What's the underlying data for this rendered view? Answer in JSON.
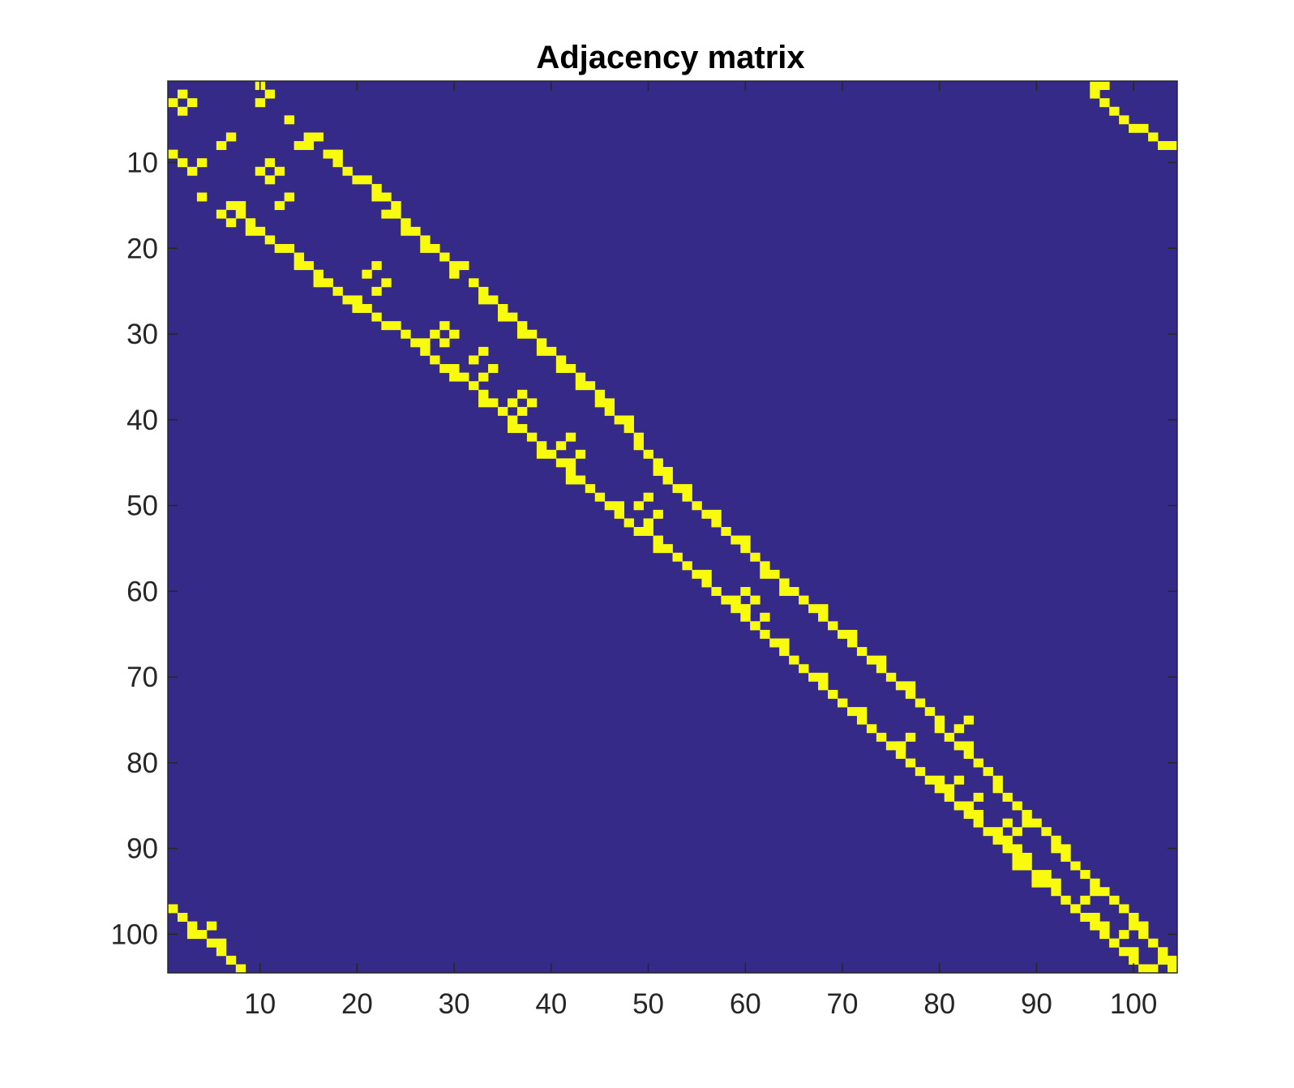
{
  "chart_data": {
    "type": "heatmap",
    "title": "Adjacency matrix",
    "xlabel": "",
    "ylabel": "",
    "n": 104,
    "xlim": [
      0.5,
      104.5
    ],
    "ylim": [
      0.5,
      104.5
    ],
    "y_direction": "reversed",
    "x_ticks": [
      10,
      20,
      30,
      40,
      50,
      60,
      70,
      80,
      90,
      100
    ],
    "y_ticks": [
      10,
      20,
      30,
      40,
      50,
      60,
      70,
      80,
      90,
      100
    ],
    "colors": {
      "zero": "#352A87",
      "one": "#F9FB0E",
      "axis": "#262626"
    },
    "nonzero_cells_approx": [
      [
        2,
        2
      ],
      [
        3,
        1
      ],
      [
        3,
        3
      ],
      [
        4,
        2
      ],
      [
        1,
        10
      ],
      [
        2,
        11
      ],
      [
        3,
        10
      ],
      [
        5,
        13
      ],
      [
        9,
        1
      ],
      [
        10,
        2
      ],
      [
        10,
        4
      ],
      [
        11,
        3
      ],
      [
        10,
        11
      ],
      [
        11,
        12
      ],
      [
        11,
        10
      ],
      [
        12,
        11
      ],
      [
        14,
        4
      ],
      [
        14,
        13
      ],
      [
        15,
        12
      ],
      [
        7,
        7
      ],
      [
        8,
        6
      ],
      [
        7,
        15
      ],
      [
        8,
        14
      ],
      [
        16,
        6
      ],
      [
        17,
        7
      ],
      [
        15,
        8
      ],
      [
        9,
        17
      ],
      [
        9,
        18
      ],
      [
        10,
        18
      ],
      [
        11,
        19
      ],
      [
        12,
        20
      ],
      [
        12,
        21
      ],
      [
        13,
        22
      ],
      [
        14,
        22
      ],
      [
        14,
        23
      ],
      [
        15,
        24
      ],
      [
        16,
        23
      ],
      [
        16,
        24
      ],
      [
        17,
        25
      ],
      [
        18,
        25
      ],
      [
        18,
        26
      ],
      [
        19,
        27
      ],
      [
        20,
        27
      ],
      [
        20,
        28
      ],
      [
        21,
        29
      ],
      [
        22,
        30
      ],
      [
        22,
        31
      ],
      [
        23,
        30
      ],
      [
        24,
        32
      ],
      [
        25,
        33
      ],
      [
        26,
        33
      ],
      [
        26,
        34
      ],
      [
        27,
        35
      ],
      [
        28,
        35
      ],
      [
        28,
        36
      ],
      [
        29,
        37
      ],
      [
        30,
        37
      ],
      [
        30,
        38
      ],
      [
        31,
        39
      ],
      [
        32,
        39
      ],
      [
        32,
        40
      ],
      [
        33,
        41
      ],
      [
        34,
        41
      ],
      [
        34,
        42
      ],
      [
        35,
        43
      ],
      [
        36,
        43
      ],
      [
        36,
        44
      ],
      [
        37,
        45
      ],
      [
        38,
        45
      ],
      [
        38,
        46
      ],
      [
        39,
        46
      ],
      [
        40,
        47
      ],
      [
        40,
        48
      ],
      [
        41,
        48
      ],
      [
        42,
        49
      ],
      [
        43,
        49
      ],
      [
        44,
        50
      ],
      [
        45,
        51
      ],
      [
        46,
        51
      ],
      [
        46,
        52
      ],
      [
        47,
        52
      ],
      [
        48,
        53
      ],
      [
        48,
        54
      ],
      [
        49,
        54
      ],
      [
        50,
        55
      ],
      [
        51,
        56
      ],
      [
        51,
        57
      ],
      [
        52,
        57
      ],
      [
        53,
        58
      ],
      [
        54,
        59
      ],
      [
        54,
        60
      ],
      [
        55,
        60
      ],
      [
        56,
        61
      ],
      [
        57,
        62
      ],
      [
        58,
        62
      ],
      [
        58,
        63
      ],
      [
        59,
        64
      ],
      [
        60,
        64
      ],
      [
        60,
        65
      ],
      [
        61,
        66
      ],
      [
        62,
        67
      ],
      [
        62,
        68
      ],
      [
        63,
        68
      ],
      [
        64,
        69
      ],
      [
        65,
        70
      ],
      [
        65,
        71
      ],
      [
        66,
        71
      ],
      [
        67,
        72
      ],
      [
        68,
        73
      ],
      [
        68,
        74
      ],
      [
        69,
        74
      ],
      [
        70,
        75
      ],
      [
        71,
        76
      ],
      [
        71,
        77
      ],
      [
        72,
        77
      ],
      [
        73,
        78
      ],
      [
        74,
        79
      ],
      [
        75,
        80
      ],
      [
        76,
        80
      ],
      [
        77,
        81
      ],
      [
        78,
        82
      ],
      [
        78,
        83
      ],
      [
        79,
        83
      ],
      [
        80,
        84
      ],
      [
        81,
        85
      ],
      [
        82,
        86
      ],
      [
        83,
        86
      ],
      [
        84,
        87
      ],
      [
        85,
        88
      ],
      [
        86,
        89
      ],
      [
        87,
        89
      ],
      [
        87,
        90
      ],
      [
        88,
        91
      ],
      [
        89,
        92
      ],
      [
        90,
        92
      ],
      [
        90,
        93
      ],
      [
        91,
        93
      ],
      [
        92,
        94
      ],
      [
        93,
        95
      ],
      [
        94,
        96
      ],
      [
        95,
        96
      ],
      [
        95,
        97
      ],
      [
        96,
        98
      ],
      [
        97,
        99
      ],
      [
        98,
        100
      ],
      [
        99,
        100
      ],
      [
        99,
        101
      ],
      [
        100,
        101
      ],
      [
        101,
        102
      ],
      [
        102,
        103
      ],
      [
        103,
        103
      ],
      [
        103,
        104
      ],
      [
        104,
        104
      ],
      [
        17,
        9
      ],
      [
        18,
        9
      ],
      [
        18,
        10
      ],
      [
        19,
        11
      ],
      [
        20,
        12
      ],
      [
        20,
        13
      ],
      [
        21,
        14
      ],
      [
        22,
        14
      ],
      [
        22,
        15
      ],
      [
        23,
        16
      ],
      [
        24,
        16
      ],
      [
        24,
        17
      ],
      [
        25,
        18
      ],
      [
        26,
        19
      ],
      [
        26,
        20
      ],
      [
        27,
        20
      ],
      [
        27,
        21
      ],
      [
        28,
        22
      ],
      [
        29,
        23
      ],
      [
        29,
        24
      ],
      [
        30,
        25
      ],
      [
        31,
        26
      ],
      [
        31,
        27
      ],
      [
        32,
        27
      ],
      [
        33,
        28
      ],
      [
        34,
        29
      ],
      [
        34,
        30
      ],
      [
        35,
        30
      ],
      [
        35,
        31
      ],
      [
        36,
        32
      ],
      [
        37,
        33
      ],
      [
        38,
        33
      ],
      [
        38,
        34
      ],
      [
        39,
        35
      ],
      [
        40,
        36
      ],
      [
        41,
        36
      ],
      [
        41,
        37
      ],
      [
        42,
        38
      ],
      [
        43,
        39
      ],
      [
        44,
        39
      ],
      [
        44,
        40
      ],
      [
        45,
        41
      ],
      [
        46,
        42
      ],
      [
        47,
        42
      ],
      [
        47,
        43
      ],
      [
        48,
        44
      ],
      [
        49,
        45
      ],
      [
        50,
        46
      ],
      [
        50,
        47
      ],
      [
        51,
        47
      ],
      [
        52,
        48
      ],
      [
        53,
        49
      ],
      [
        53,
        50
      ],
      [
        54,
        51
      ],
      [
        55,
        51
      ],
      [
        55,
        52
      ],
      [
        56,
        53
      ],
      [
        57,
        54
      ],
      [
        58,
        55
      ],
      [
        58,
        56
      ],
      [
        59,
        56
      ],
      [
        60,
        57
      ],
      [
        61,
        58
      ],
      [
        62,
        59
      ],
      [
        62,
        60
      ],
      [
        63,
        60
      ],
      [
        64,
        61
      ],
      [
        65,
        62
      ],
      [
        66,
        63
      ],
      [
        66,
        64
      ],
      [
        67,
        64
      ],
      [
        68,
        65
      ],
      [
        69,
        66
      ],
      [
        70,
        67
      ],
      [
        70,
        68
      ],
      [
        71,
        68
      ],
      [
        72,
        69
      ],
      [
        73,
        70
      ],
      [
        74,
        71
      ],
      [
        74,
        72
      ],
      [
        75,
        72
      ],
      [
        76,
        73
      ],
      [
        77,
        74
      ],
      [
        78,
        75
      ],
      [
        78,
        76
      ],
      [
        79,
        76
      ],
      [
        80,
        77
      ],
      [
        81,
        78
      ],
      [
        82,
        79
      ],
      [
        82,
        80
      ],
      [
        83,
        80
      ],
      [
        84,
        81
      ],
      [
        85,
        82
      ],
      [
        86,
        83
      ],
      [
        86,
        84
      ],
      [
        87,
        84
      ],
      [
        88,
        85
      ],
      [
        89,
        86
      ],
      [
        90,
        87
      ],
      [
        90,
        88
      ],
      [
        91,
        88
      ],
      [
        92,
        89
      ],
      [
        93,
        90
      ],
      [
        94,
        91
      ],
      [
        94,
        92
      ],
      [
        95,
        92
      ],
      [
        96,
        93
      ],
      [
        97,
        94
      ],
      [
        98,
        95
      ],
      [
        98,
        96
      ],
      [
        99,
        96
      ],
      [
        100,
        97
      ],
      [
        101,
        98
      ],
      [
        102,
        99
      ],
      [
        102,
        100
      ],
      [
        103,
        100
      ],
      [
        104,
        101
      ],
      [
        104,
        102
      ],
      [
        7,
        16
      ],
      [
        8,
        15
      ],
      [
        15,
        7
      ],
      [
        16,
        8
      ],
      [
        22,
        22
      ],
      [
        23,
        21
      ],
      [
        24,
        23
      ],
      [
        25,
        22
      ],
      [
        29,
        29
      ],
      [
        30,
        30
      ],
      [
        30,
        28
      ],
      [
        31,
        29
      ],
      [
        32,
        33
      ],
      [
        33,
        32
      ],
      [
        34,
        34
      ],
      [
        35,
        33
      ],
      [
        37,
        37
      ],
      [
        38,
        38
      ],
      [
        38,
        36
      ],
      [
        39,
        37
      ],
      [
        42,
        42
      ],
      [
        43,
        41
      ],
      [
        44,
        43
      ],
      [
        45,
        42
      ],
      [
        49,
        50
      ],
      [
        50,
        49
      ],
      [
        51,
        51
      ],
      [
        52,
        50
      ],
      [
        60,
        60
      ],
      [
        61,
        61
      ],
      [
        61,
        59
      ],
      [
        62,
        60
      ],
      [
        63,
        62
      ],
      [
        64,
        61
      ],
      [
        75,
        83
      ],
      [
        76,
        82
      ],
      [
        77,
        77
      ],
      [
        78,
        76
      ],
      [
        82,
        82
      ],
      [
        83,
        81
      ],
      [
        84,
        84
      ],
      [
        85,
        83
      ],
      [
        87,
        87
      ],
      [
        88,
        88
      ],
      [
        88,
        86
      ],
      [
        89,
        87
      ],
      [
        91,
        89
      ],
      [
        92,
        88
      ],
      [
        93,
        91
      ],
      [
        94,
        90
      ],
      [
        96,
        95
      ],
      [
        97,
        94
      ],
      [
        98,
        96
      ],
      [
        99,
        97
      ],
      [
        100,
        99
      ],
      [
        101,
        98
      ],
      [
        1,
        96
      ],
      [
        2,
        96
      ],
      [
        3,
        97
      ],
      [
        4,
        98
      ],
      [
        5,
        99
      ],
      [
        6,
        100
      ],
      [
        6,
        101
      ],
      [
        7,
        102
      ],
      [
        8,
        103
      ],
      [
        8,
        104
      ],
      [
        1,
        97
      ],
      [
        97,
        1
      ],
      [
        98,
        2
      ],
      [
        99,
        3
      ],
      [
        100,
        4
      ],
      [
        101,
        5
      ],
      [
        101,
        6
      ],
      [
        102,
        6
      ],
      [
        103,
        7
      ],
      [
        104,
        8
      ],
      [
        99,
        5
      ],
      [
        100,
        3
      ]
    ]
  }
}
